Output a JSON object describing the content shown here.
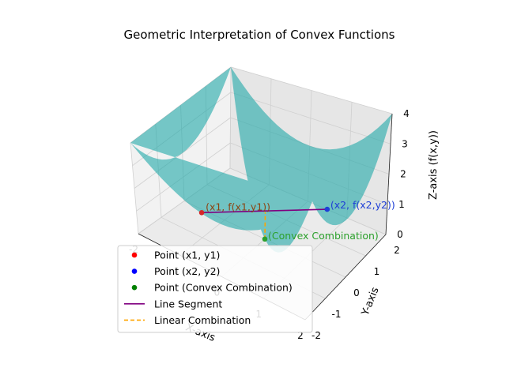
{
  "chart_data": {
    "type": "surface3d",
    "title": "Geometric Interpretation of Convex Functions",
    "xlabel": "X-axis",
    "ylabel": "Y-axis",
    "zlabel": "Z-axis (f(x,y))",
    "xlim": [
      -2,
      2
    ],
    "ylim": [
      -2,
      2
    ],
    "zlim": [
      0,
      4
    ],
    "x_ticks": [
      "-2",
      "-1",
      "0",
      "1",
      "2"
    ],
    "y_ticks": [
      "-2",
      "-1",
      "0",
      "1",
      "2"
    ],
    "z_ticks": [
      "0",
      "1",
      "2",
      "3",
      "4"
    ],
    "grid": true,
    "surface": {
      "function": "f(x,y) = (x^2 + y^2) / 2",
      "color": "#20a8a8",
      "alpha": 0.6
    },
    "points": [
      {
        "name": "Point (x1, y1)",
        "x": -1,
        "y": -1,
        "z": 1,
        "color": "#d62728",
        "annotation": "(x1, f(x1,y1))",
        "annotation_color": "#8b4513"
      },
      {
        "name": "Point (x2, y2)",
        "x": 1,
        "y": 1,
        "z": 1,
        "color": "#1f3fd6",
        "annotation": "(x2, f(x2,y2))",
        "annotation_color": "#1f3fd6"
      },
      {
        "name": "Point (Convex Combination)",
        "x": 0,
        "y": 0,
        "z": 0,
        "color": "#2ca02c",
        "annotation": "(Convex Combination)",
        "annotation_color": "#2ca02c"
      }
    ],
    "series": [
      {
        "name": "Line Segment",
        "style": "solid",
        "color": "#800080",
        "points": [
          [
            -1,
            -1,
            1
          ],
          [
            1,
            1,
            1
          ]
        ]
      },
      {
        "name": "Linear Combination",
        "style": "dashed",
        "color": "#ffa500",
        "points": [
          [
            0,
            0,
            0
          ],
          [
            0,
            0,
            1
          ]
        ]
      }
    ],
    "legend": {
      "position": "lower-left",
      "entries": [
        {
          "label": "Point (x1, y1)",
          "marker": "dot",
          "color": "#ff0000"
        },
        {
          "label": "Point (x2, y2)",
          "marker": "dot",
          "color": "#0000ff"
        },
        {
          "label": "Point (Convex Combination)",
          "marker": "dot",
          "color": "#008000"
        },
        {
          "label": "Line Segment",
          "marker": "line",
          "color": "#800080"
        },
        {
          "label": "Linear Combination",
          "marker": "dashed",
          "color": "#ffa500"
        }
      ]
    }
  }
}
